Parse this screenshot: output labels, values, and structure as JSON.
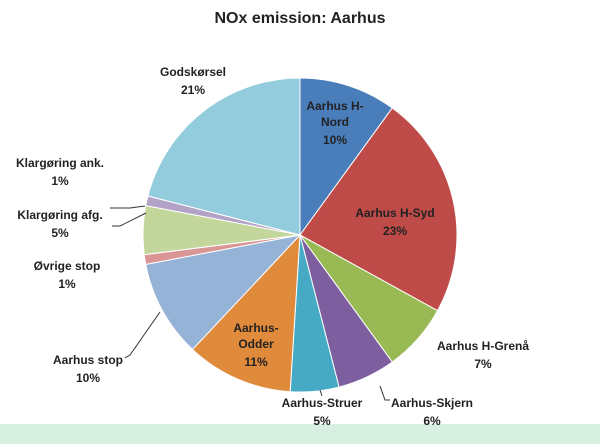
{
  "chart_data": {
    "type": "pie",
    "title": "NOx emission: Aarhus",
    "categories": [
      "Aarhus H-Nord",
      "Aarhus H-Syd",
      "Aarhus H-Grenå",
      "Aarhus-Skjern",
      "Aarhus-Struer",
      "Aarhus-Odder",
      "Aarhus stop",
      "Øvrige stop",
      "Klargøring afg.",
      "Klargøring ank.",
      "Godskørsel"
    ],
    "values": [
      10,
      23,
      7,
      6,
      5,
      11,
      10,
      1,
      5,
      1,
      21
    ],
    "value_labels": [
      "10%",
      "23%",
      "7%",
      "6%",
      "5%",
      "11%",
      "10%",
      "1%",
      "5%",
      "1%",
      "21%"
    ],
    "colors": [
      "#4a7ebb",
      "#be4b48",
      "#98b954",
      "#7d5fa0",
      "#46aac5",
      "#e08a3c",
      "#95b3d7",
      "#d99694",
      "#c3d69b",
      "#b3a2c7",
      "#93cddd"
    ]
  }
}
